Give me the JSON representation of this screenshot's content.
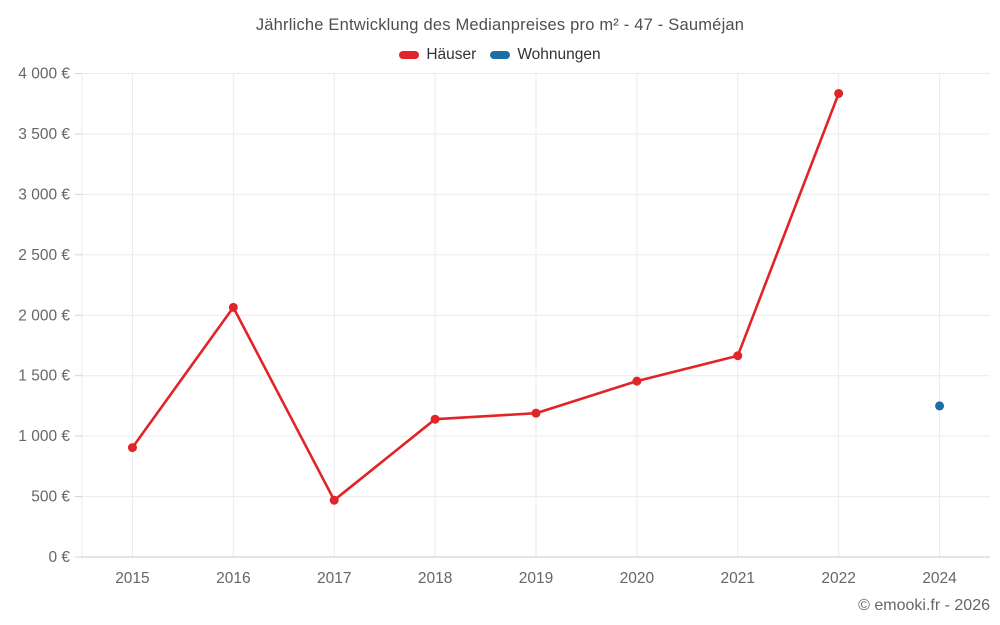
{
  "header": {
    "title": "Jährliche Entwicklung des Medianpreises pro m² - 47 - Sauméjan"
  },
  "legend": {
    "items": [
      {
        "label": "Häuser",
        "color": "#e02428"
      },
      {
        "label": "Wohnungen",
        "color": "#1c6ea4"
      }
    ]
  },
  "footer": {
    "credit": "© emooki.fr - 2026"
  },
  "chart_data": {
    "type": "line",
    "title": "Jährliche Entwicklung des Medianpreises pro m² - 47 - Sauméjan",
    "categories": [
      "2015",
      "2016",
      "2017",
      "2018",
      "2019",
      "2020",
      "2021",
      "2022",
      "2024"
    ],
    "series": [
      {
        "name": "Häuser",
        "color": "#e02428",
        "values": [
          905,
          2065,
          470,
          1140,
          1190,
          1455,
          1665,
          3835,
          null
        ]
      },
      {
        "name": "Wohnungen",
        "color": "#1c6ea4",
        "values": [
          null,
          null,
          null,
          null,
          null,
          null,
          null,
          null,
          1250
        ]
      }
    ],
    "ylim": [
      0,
      4000
    ],
    "ytick_step": 500,
    "ytick_labels": [
      "0 €",
      "500 €",
      "1 000 €",
      "1 500 €",
      "2 000 €",
      "2 500 €",
      "3 000 €",
      "3 500 €",
      "4 000 €"
    ],
    "xlabel": "",
    "ylabel": "",
    "grid": true,
    "legend_position": "top",
    "colors": {
      "grid_line": "#ebebeb",
      "axis_line": "#c9c9c9",
      "tick_mark": "#d4d4d4",
      "axis_label": "#666666"
    }
  }
}
